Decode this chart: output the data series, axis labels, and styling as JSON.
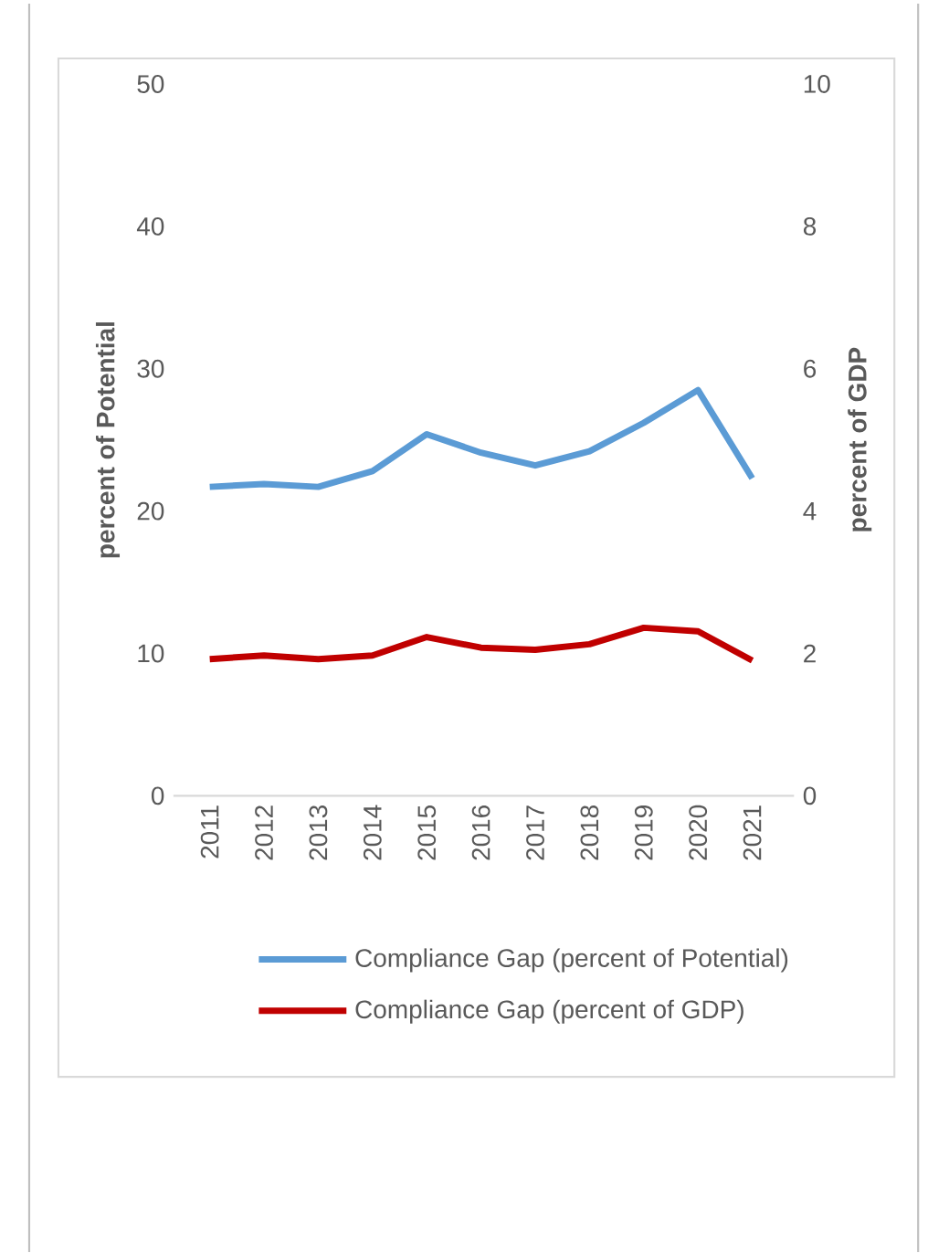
{
  "chart_data": {
    "type": "line",
    "categories": [
      "2011",
      "2012",
      "2013",
      "2014",
      "2015",
      "2016",
      "2017",
      "2018",
      "2019",
      "2020",
      "2021"
    ],
    "series": [
      {
        "name": "Compliance Gap (percent of Potential)",
        "color": "#5b9bd5",
        "values": [
          21.7,
          21.9,
          21.7,
          22.8,
          25.4,
          24.1,
          23.2,
          24.2,
          26.2,
          28.5,
          22.3
        ]
      },
      {
        "name": "Compliance Gap (percent of GDP)",
        "color": "#c00000",
        "axis": "y2",
        "values": [
          1.92,
          1.97,
          1.92,
          1.97,
          2.23,
          2.08,
          2.05,
          2.13,
          2.36,
          2.31,
          1.9
        ]
      }
    ],
    "ylabel": "percent of Potential",
    "y2label": "percent of GDP",
    "ylim": [
      0,
      50
    ],
    "yticks": [
      0,
      10,
      20,
      30,
      40,
      50
    ],
    "y2lim": [
      0,
      10
    ],
    "y2ticks": [
      0,
      2,
      4,
      6,
      8,
      10
    ],
    "legend": "bottom",
    "grid": false,
    "marker": "none",
    "line_style": "solid"
  }
}
